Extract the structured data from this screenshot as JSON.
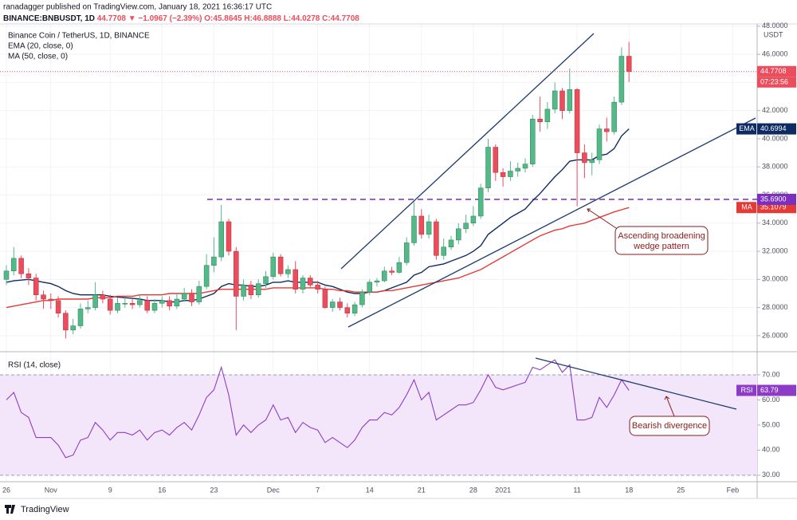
{
  "header": {
    "publisher": "ranadagger published on TradingView.com, January 18, 2021 16:36:17 UTC",
    "symbol": "BINANCE:BNBUSDT, 1D",
    "last": "44.7708",
    "change": "▼ −1.0967 (−2.39%)",
    "ohlc": "O:45.8645 H:46.8888 L:44.0278 C:44.7708"
  },
  "footer": "TradingView",
  "chart_data": [
    {
      "type": "candlestick",
      "title": "Binance Coin / TetherUS, 1D, BINANCE",
      "currency": "USDT",
      "categories": [
        "26",
        null,
        null,
        null,
        null,
        null,
        "Nov",
        null,
        null,
        null,
        null,
        null,
        null,
        null,
        "9",
        null,
        null,
        null,
        null,
        null,
        null,
        "16",
        null,
        null,
        null,
        null,
        null,
        null,
        "23",
        null,
        null,
        null,
        null,
        null,
        null,
        null,
        "Dec",
        null,
        null,
        null,
        null,
        null,
        "7",
        null,
        null,
        null,
        null,
        null,
        null,
        "14",
        null,
        null,
        null,
        null,
        null,
        null,
        "21",
        null,
        null,
        null,
        null,
        null,
        null,
        "28",
        null,
        null,
        null,
        "2021",
        null,
        null,
        null,
        null,
        null,
        null,
        null,
        null,
        null,
        "11",
        null,
        null,
        null,
        null,
        null,
        null,
        "18",
        null,
        null,
        null,
        null,
        null,
        null,
        "25",
        null,
        null,
        null,
        null,
        null,
        null,
        "Feb",
        null,
        null
      ],
      "open": [
        30.0,
        30.6,
        31.5,
        30.4,
        30.1,
        28.9,
        28.6,
        28.5,
        27.6,
        26.4,
        26.7,
        27.9,
        28.0,
        28.9,
        28.6,
        27.8,
        28.3,
        28.3,
        28.2,
        28.5,
        27.8,
        28.3,
        28.5,
        28.1,
        28.6,
        29.0,
        28.4,
        29.5,
        31.0,
        31.6,
        34.1,
        32.0,
        28.8,
        29.6,
        28.9,
        29.7,
        30.2,
        31.6,
        30.4,
        30.7,
        29.3,
        30.1,
        29.6,
        29.3,
        28.0,
        28.4,
        28.0,
        27.6,
        28.2,
        29.1,
        29.8,
        29.9,
        30.6,
        30.5,
        31.2,
        32.6,
        34.5,
        33.2,
        34.1,
        31.7,
        32.3,
        32.8,
        33.6,
        34.0,
        34.5,
        36.5,
        39.4,
        37.6,
        37.3,
        37.7,
        37.9,
        38.2,
        41.4,
        41.2,
        42.1,
        43.4,
        42.0,
        43.5,
        39.0,
        38.3,
        38.5,
        40.7,
        40.5,
        42.6,
        45.8645,
        null,
        null,
        null,
        null,
        null,
        null,
        null,
        null,
        null,
        null,
        null,
        null,
        null,
        null,
        null,
        null
      ],
      "high": [
        31.0,
        32.3,
        31.7,
        30.8,
        30.4,
        29.2,
        29.0,
        28.8,
        27.8,
        27.2,
        28.3,
        28.5,
        29.8,
        29.2,
        28.9,
        28.7,
        28.7,
        28.6,
        28.9,
        28.8,
        28.6,
        28.8,
        28.8,
        29.0,
        29.4,
        29.3,
        29.9,
        31.8,
        33.0,
        35.3,
        34.3,
        32.3,
        30.0,
        29.9,
        30.0,
        30.6,
        31.9,
        31.8,
        31.0,
        31.3,
        30.3,
        30.3,
        29.9,
        29.5,
        28.6,
        28.7,
        28.3,
        28.4,
        29.3,
        30.0,
        30.1,
        30.9,
        30.9,
        31.6,
        33.0,
        35.5,
        35.0,
        34.6,
        34.3,
        32.9,
        33.1,
        34.0,
        34.6,
        35.2,
        36.8,
        40.0,
        39.6,
        37.9,
        38.4,
        38.3,
        38.6,
        41.7,
        43.0,
        42.6,
        44.0,
        43.6,
        45.0,
        43.6,
        39.6,
        39.0,
        41.0,
        41.5,
        43.0,
        46.5,
        46.8888,
        null,
        null,
        null,
        null,
        null,
        null,
        null,
        null,
        null,
        null,
        null,
        null,
        null,
        null,
        null,
        null
      ],
      "low": [
        29.6,
        30.3,
        30.1,
        29.6,
        28.5,
        27.9,
        27.9,
        27.3,
        25.8,
        26.1,
        26.5,
        27.6,
        27.8,
        28.3,
        27.5,
        27.6,
        28.0,
        27.9,
        28.0,
        27.6,
        27.6,
        28.0,
        27.8,
        27.9,
        28.4,
        28.1,
        28.2,
        29.3,
        30.5,
        31.3,
        31.7,
        26.4,
        28.5,
        28.6,
        28.7,
        29.4,
        30.0,
        30.2,
        30.1,
        29.0,
        29.0,
        29.4,
        29.0,
        27.9,
        27.7,
        27.8,
        27.3,
        27.4,
        28.0,
        28.9,
        29.5,
        29.8,
        30.3,
        30.4,
        31.0,
        32.4,
        32.9,
        32.9,
        31.4,
        31.4,
        32.1,
        32.5,
        33.3,
        33.8,
        34.3,
        36.2,
        37.0,
        36.6,
        37.0,
        37.3,
        37.6,
        38.0,
        40.5,
        40.7,
        41.8,
        41.4,
        41.8,
        35.2,
        37.2,
        37.4,
        38.2,
        39.8,
        40.3,
        42.4,
        44.0278,
        null,
        null,
        null,
        null,
        null,
        null,
        null,
        null,
        null,
        null,
        null,
        null,
        null,
        null,
        null,
        null
      ],
      "close": [
        30.6,
        31.5,
        30.4,
        30.1,
        28.9,
        28.6,
        28.5,
        27.6,
        26.4,
        26.7,
        27.9,
        28.0,
        28.9,
        28.6,
        27.8,
        28.3,
        28.3,
        28.2,
        28.5,
        27.8,
        28.3,
        28.5,
        28.1,
        28.6,
        29.0,
        28.4,
        29.5,
        31.0,
        31.6,
        34.1,
        32.0,
        28.8,
        29.6,
        28.9,
        29.7,
        30.2,
        31.6,
        30.4,
        30.7,
        29.3,
        30.1,
        29.6,
        29.3,
        28.0,
        28.4,
        28.0,
        27.6,
        28.2,
        29.1,
        29.8,
        29.9,
        30.6,
        30.5,
        31.2,
        32.6,
        34.5,
        33.2,
        34.1,
        31.7,
        32.3,
        32.8,
        33.6,
        34.0,
        34.5,
        36.5,
        39.4,
        37.6,
        37.3,
        37.7,
        37.9,
        38.2,
        41.4,
        41.2,
        42.1,
        43.4,
        42.0,
        43.5,
        39.0,
        38.3,
        38.5,
        40.7,
        40.5,
        42.6,
        45.8645,
        44.7708,
        null,
        null,
        null,
        null,
        null,
        null,
        null,
        null,
        null,
        null,
        null,
        null,
        null,
        null,
        null,
        null
      ],
      "up_color": "#53b987",
      "down_color": "#eb4d5c",
      "last_label": "44.7708",
      "countdown": "07:23:56",
      "series": [
        {
          "name": "EMA (20, close, 0)",
          "tag": "EMA",
          "last_value_label": "40.6994",
          "color": "#0e2a63",
          "values": [
            29.8,
            29.9,
            29.95,
            30.0,
            29.9,
            29.8,
            29.7,
            29.5,
            29.2,
            29.0,
            28.9,
            28.9,
            28.9,
            28.9,
            28.8,
            28.75,
            28.7,
            28.65,
            28.6,
            28.5,
            28.5,
            28.5,
            28.4,
            28.4,
            28.5,
            28.5,
            28.6,
            28.8,
            29.0,
            29.5,
            29.7,
            29.6,
            29.6,
            29.5,
            29.5,
            29.6,
            29.8,
            29.8,
            29.9,
            29.8,
            29.8,
            29.8,
            29.8,
            29.6,
            29.5,
            29.3,
            29.1,
            29.0,
            29.0,
            29.1,
            29.1,
            29.2,
            29.4,
            29.6,
            29.8,
            30.3,
            30.5,
            30.9,
            31.0,
            31.1,
            31.3,
            31.5,
            31.7,
            32.0,
            32.4,
            33.2,
            33.6,
            34.0,
            34.4,
            34.7,
            35.0,
            35.6,
            36.1,
            36.7,
            37.3,
            37.8,
            38.4,
            38.5,
            38.5,
            38.5,
            38.8,
            38.9,
            39.3,
            40.2,
            40.6994,
            null,
            null,
            null,
            null,
            null,
            null,
            null,
            null,
            null,
            null,
            null,
            null,
            null,
            null,
            null,
            null
          ]
        },
        {
          "name": "MA (50, close, 0)",
          "tag": "MA",
          "last_value_label": "35.1079",
          "color": "#e53935",
          "values": [
            28.0,
            28.1,
            28.2,
            28.3,
            28.4,
            28.5,
            28.5,
            28.6,
            28.6,
            28.6,
            28.6,
            28.6,
            28.7,
            28.7,
            28.7,
            28.8,
            28.8,
            28.8,
            28.9,
            28.9,
            28.9,
            28.9,
            29.0,
            29.0,
            29.0,
            29.0,
            29.0,
            29.1,
            29.2,
            29.3,
            29.3,
            29.3,
            29.3,
            29.3,
            29.3,
            29.3,
            29.4,
            29.4,
            29.4,
            29.4,
            29.4,
            29.4,
            29.4,
            29.3,
            29.3,
            29.2,
            29.2,
            29.1,
            29.1,
            29.1,
            29.1,
            29.2,
            29.2,
            29.3,
            29.4,
            29.5,
            29.6,
            29.7,
            29.8,
            29.9,
            30.0,
            30.1,
            30.3,
            30.5,
            30.7,
            31.0,
            31.3,
            31.6,
            31.9,
            32.2,
            32.5,
            32.8,
            33.1,
            33.3,
            33.5,
            33.6,
            33.8,
            33.9,
            34.0,
            34.2,
            34.4,
            34.6,
            34.8,
            34.95,
            35.1079,
            null,
            null,
            null,
            null,
            null,
            null,
            null,
            null,
            null,
            null,
            null,
            null,
            null,
            null,
            null,
            null
          ]
        }
      ],
      "hline": {
        "value": 35.69,
        "label": "35.6900",
        "color": "#7b2fbe"
      },
      "ylim": [
        24.86,
        48.16
      ],
      "yticks": [
        {
          "value": 26,
          "label": "26.0000"
        },
        {
          "value": 28,
          "label": "28.0000"
        },
        {
          "value": 30,
          "label": "30.0000"
        },
        {
          "value": 32,
          "label": "32.0000"
        },
        {
          "value": 34,
          "label": "34.0000"
        },
        {
          "value": 36,
          "label": "36.0000"
        },
        {
          "value": 38,
          "label": "38.0000"
        },
        {
          "value": 40,
          "label": "40.0000"
        },
        {
          "value": 42,
          "label": "42.0000"
        },
        {
          "value": 44,
          "label": "44.0000"
        },
        {
          "value": 46,
          "label": "46.0000"
        },
        {
          "value": 48,
          "label": "48.0000"
        }
      ],
      "grid": true,
      "annotations": [
        [
          "Ascending broadening",
          "wedge pattern"
        ]
      ]
    },
    {
      "type": "line",
      "title": "RSI (14, close)",
      "series": [
        {
          "name": "RSI (14, close)",
          "tag": "RSI",
          "last_value_label": "63.79",
          "color": "#8e3cc8",
          "values": [
            60,
            63,
            55,
            53,
            45,
            45,
            45,
            42,
            37,
            38,
            44,
            45,
            51,
            48,
            44,
            47,
            47,
            46,
            48,
            44,
            47,
            48,
            46,
            49,
            51,
            48,
            54,
            61,
            64,
            73,
            62,
            46,
            50,
            47,
            50,
            52,
            58,
            52,
            53,
            47,
            51,
            49,
            48,
            43,
            45,
            43,
            41,
            44,
            49,
            52,
            52,
            55,
            54,
            57,
            62,
            68,
            60,
            63,
            52,
            54,
            56,
            58,
            58,
            59,
            64,
            70,
            65,
            64,
            65,
            66,
            67,
            73,
            72,
            74,
            76,
            71,
            74,
            52,
            52,
            53,
            61,
            57,
            62,
            68,
            63.79,
            null,
            null,
            null,
            null,
            null,
            null,
            null,
            null,
            null,
            null,
            null,
            null,
            null,
            null,
            null,
            null
          ]
        }
      ],
      "band": [
        30,
        70
      ],
      "band_color": "#f3e6fb",
      "ylim": [
        27.4,
        79.2
      ],
      "yticks": [
        {
          "value": 30,
          "label": "30.00"
        },
        {
          "value": 40,
          "label": "40.00"
        },
        {
          "value": 50,
          "label": "50.00"
        },
        {
          "value": 60,
          "label": "60.00"
        },
        {
          "value": 70,
          "label": "70.00"
        }
      ],
      "grid": true,
      "annotations": [
        "Bearish divergence"
      ]
    }
  ]
}
